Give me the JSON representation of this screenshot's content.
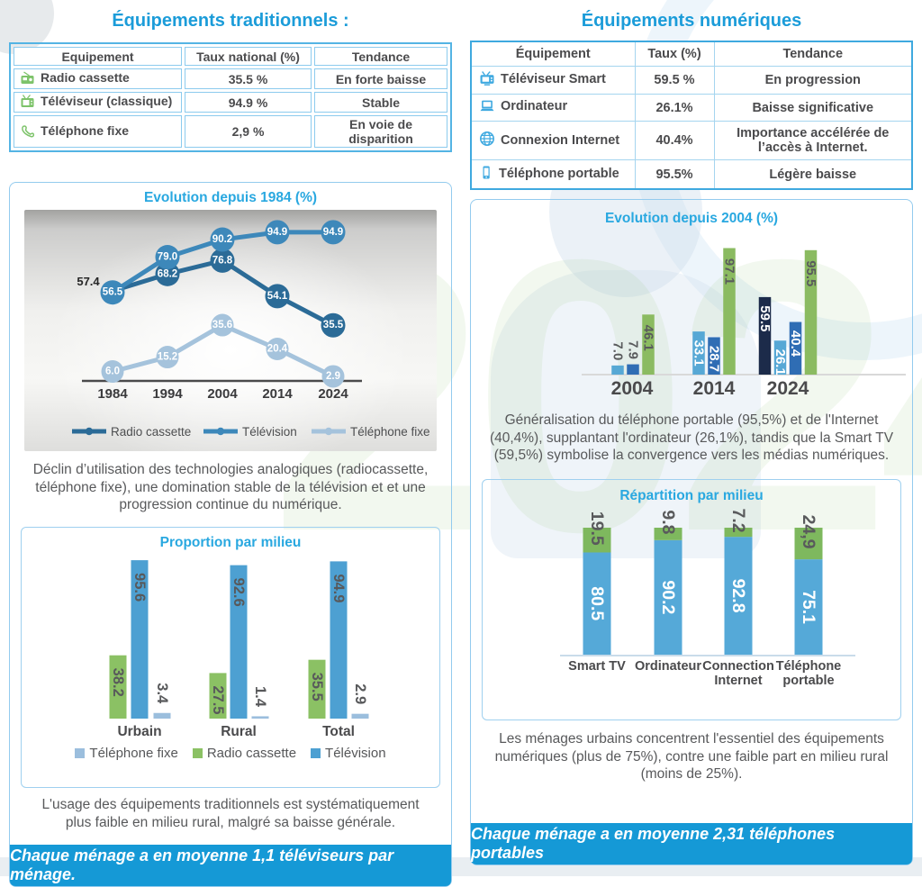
{
  "colors": {
    "accent_blue": "#1b9cd9",
    "box_title_blue": "#29a8e0",
    "footer_band": "#1599d6",
    "text_gray": "#58595b",
    "green_icon": "#7dc36a",
    "blue_icon": "#3fa9e0"
  },
  "page": {
    "left": {
      "title": "Équipements traditionnels :",
      "table": {
        "headers": [
          "Equipement",
          "Taux national (%)",
          "Tendance"
        ],
        "rows": [
          {
            "icon": "radio-icon",
            "label": "Radio cassette",
            "taux": "35.5 %",
            "tendance": "En forte baisse"
          },
          {
            "icon": "tv-icon",
            "label": "Téléviseur (classique)",
            "taux": "94.9 %",
            "tendance": "Stable"
          },
          {
            "icon": "phone-icon",
            "label": "Téléphone fixe",
            "taux": "2,9 %",
            "tendance": "En voie de disparition"
          }
        ]
      },
      "line_box_title": "Evolution depuis 1984 (%)",
      "caption1": "Déclin d’utilisation des technologies analogiques (radiocassette, téléphone fixe), une domination stable de la télévision et et une progression continue du numérique.",
      "bar_box_title": "Proportion par milieu",
      "caption2": "L'usage des équipements traditionnels est systématiquement plus faible en milieu rural, malgré sa baisse générale.",
      "footer": "Chaque ménage a en moyenne 1,1 téléviseurs par ménage."
    },
    "right": {
      "title": "Équipements numériques",
      "table": {
        "headers": [
          "Équipement",
          "Taux (%)",
          "Tendance"
        ],
        "rows": [
          {
            "icon": "smart-tv-icon",
            "label": "Téléviseur Smart",
            "taux": "59.5 %",
            "tendance": "En progression"
          },
          {
            "icon": "computer-icon",
            "label": "Ordinateur",
            "taux": "26.1%",
            "tendance": "Baisse significative"
          },
          {
            "icon": "globe-icon",
            "label": "Connexion Internet",
            "taux": "40.4%",
            "tendance": "Importance accélérée de l’accès à Internet."
          },
          {
            "icon": "mobile-icon",
            "label": "Téléphone portable",
            "taux": "95.5%",
            "tendance": "Légère baisse"
          }
        ]
      },
      "bar_box_title": "Evolution depuis 2004 (%)",
      "caption1": "Généralisation du téléphone portable (95,5%) et de l'Internet (40,4%), supplantant l'ordinateur (26,1%), tandis que la Smart TV (59,5%) symbolise la convergence vers les médias numériques.",
      "stacked_box_title": "Répartition par milieu",
      "caption2": "Les ménages urbains concentrent l'essentiel des équipements numériques (plus de 75%), contre une faible part en milieu rural (moins de 25%).",
      "footer": "Chaque ménage a en moyenne 2,31 téléphones portables"
    }
  },
  "chart_data": [
    {
      "id": "evolution_1984",
      "type": "line",
      "title": "Evolution depuis 1984 (%)",
      "x": [
        "1984",
        "1994",
        "2004",
        "2014",
        "2024"
      ],
      "ylim": [
        0,
        100
      ],
      "grid": false,
      "legend_position": "bottom",
      "series": [
        {
          "name": "Radio cassette",
          "color": "#2b6b97",
          "values": [
            57.4,
            68.2,
            76.8,
            54.1,
            35.5
          ],
          "labels": [
            "57.4",
            "68.2",
            "76.8",
            "54.1",
            "35.5"
          ],
          "first_label_outside": true
        },
        {
          "name": "Télévision",
          "color": "#3d88ba",
          "values": [
            56.5,
            79.0,
            90.2,
            94.9,
            94.9
          ],
          "labels": [
            "56.5",
            "79.0",
            "90.2",
            "94.9",
            "94.9"
          ]
        },
        {
          "name": "Téléphone fixe",
          "color": "#a5c3dc",
          "values": [
            6.0,
            15.2,
            35.6,
            20.4,
            2.9
          ],
          "labels": [
            "6.0",
            "15.2",
            "35.6",
            "20.4",
            "2.9"
          ]
        }
      ]
    },
    {
      "id": "proportion_milieu",
      "type": "bar",
      "title": "Proportion par milieu",
      "categories": [
        "Urbain",
        "Rural",
        "Total"
      ],
      "ylim": [
        0,
        100
      ],
      "grid": false,
      "legend_position": "bottom",
      "legend_order": [
        "Téléphone fixe",
        "Radio cassette",
        "Télévision"
      ],
      "series": [
        {
          "name": "Radio cassette",
          "color": "#8bc164",
          "values": [
            38.2,
            27.5,
            35.5
          ],
          "labels": [
            "38.2",
            "27.5",
            "35.5"
          ]
        },
        {
          "name": "Télévision",
          "color": "#4da0d2",
          "values": [
            95.6,
            92.6,
            94.9
          ],
          "labels": [
            "95.6",
            "92.6",
            "94.9"
          ]
        },
        {
          "name": "Téléphone fixe",
          "color": "#9bbedd",
          "values": [
            3.4,
            1.4,
            2.9
          ],
          "labels": [
            "3.4",
            "1.4",
            "2.9"
          ]
        }
      ]
    },
    {
      "id": "evolution_2004",
      "type": "bar",
      "title": "Evolution depuis 2004 (%)",
      "categories": [
        "2004",
        "2014",
        "2024"
      ],
      "ylim": [
        0,
        100
      ],
      "grid": false,
      "legend_position": "none",
      "series": [
        {
          "name": "Téléviseur Smart",
          "color": "#1c2b4a",
          "values": [
            null,
            null,
            59.5
          ],
          "labels": [
            "",
            "",
            "59.5"
          ]
        },
        {
          "name": "Ordinateur",
          "color": "#57a8d5",
          "values": [
            7.0,
            33.1,
            26.1
          ],
          "labels": [
            "7.0",
            "33.1",
            "26.1"
          ]
        },
        {
          "name": "Connexion Internet",
          "color": "#2f6db4",
          "values": [
            7.9,
            28.7,
            40.4
          ],
          "labels": [
            "7.9",
            "28.7",
            "40.4"
          ]
        },
        {
          "name": "Téléphone portable",
          "color": "#8bbb61",
          "values": [
            46.1,
            97.1,
            95.5
          ],
          "labels": [
            "46.1",
            "97.1",
            "95.5"
          ]
        }
      ]
    },
    {
      "id": "repartition_milieu",
      "type": "stacked-bar",
      "title": "Répartition par milieu",
      "categories": [
        "Smart TV",
        "Ordinateur",
        "Connection Internet",
        "Téléphone portable"
      ],
      "category_lines": [
        [
          "Smart TV"
        ],
        [
          "Ordinateur"
        ],
        [
          "Connection",
          "Internet"
        ],
        [
          "Téléphone",
          "portable"
        ]
      ],
      "ylim": [
        0,
        100
      ],
      "grid": false,
      "legend_position": "none",
      "series": [
        {
          "name": "Urbain",
          "color": "#55a9d8",
          "values": [
            80.5,
            90.2,
            92.8,
            75.1
          ],
          "labels": [
            "80.5",
            "90.2",
            "92.8",
            "75.1"
          ]
        },
        {
          "name": "Rural",
          "color": "#7eb85e",
          "values": [
            19.5,
            9.8,
            7.2,
            24.9
          ],
          "labels": [
            "19.5",
            "9.8",
            "7.2",
            "24,9"
          ]
        }
      ]
    }
  ]
}
